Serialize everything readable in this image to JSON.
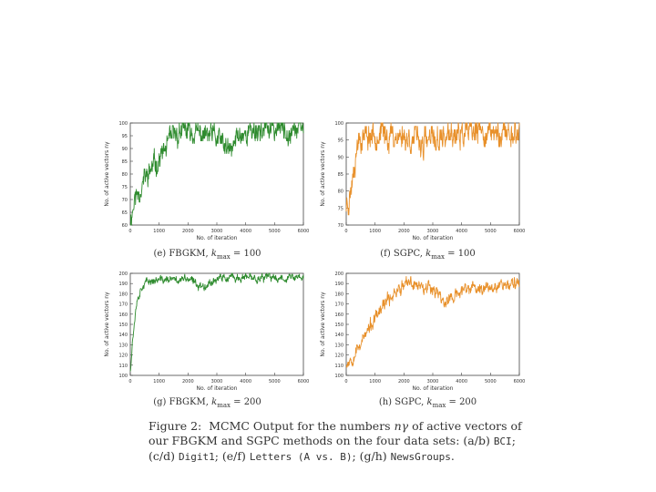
{
  "figure": {
    "label": "Figure 2:",
    "caption_start": "MCMC Output for the numbers ",
    "caption_symbol": "nγ",
    "caption_mid": " of active vectors of our FBGKM and SGPC methods on the four data sets: (a/b) ",
    "dataset_1": "BCI",
    "sep_1": "; (c/d) ",
    "dataset_2": "Digit1",
    "sep_2": "; (e/f) ",
    "dataset_3": "Letters (A vs. B)",
    "sep_3": "; (g/h) ",
    "dataset_4": "NewsGroups",
    "end": "."
  },
  "colors": {
    "fbgkm": "#2e8b2e",
    "sgpc": "#e8902a"
  },
  "chart_data": [
    {
      "id": "e",
      "type": "line",
      "caption": "(e) FBGKM, k_max = 100",
      "caption_text": "(e) FBGKM, ",
      "caption_kmax": "k",
      "caption_sub": "max",
      "caption_eq": " = 100",
      "ylabel": "No. of active vectors nγ",
      "xlabel": "No. of iteration",
      "xlim": [
        0,
        6000
      ],
      "ylim": [
        60,
        100
      ],
      "xticks": [
        "0",
        "1000",
        "2000",
        "3000",
        "4000",
        "5000",
        "6000"
      ],
      "yticks": [
        "60",
        "65",
        "70",
        "75",
        "80",
        "85",
        "90",
        "95",
        "100"
      ],
      "series_color": "fbgkm",
      "profile": [
        [
          0,
          62
        ],
        [
          150,
          70
        ],
        [
          400,
          76
        ],
        [
          800,
          83
        ],
        [
          1200,
          89
        ],
        [
          1500,
          95
        ],
        [
          1800,
          97
        ],
        [
          2200,
          96
        ],
        [
          2600,
          95
        ],
        [
          3000,
          94
        ],
        [
          3300,
          90
        ],
        [
          3500,
          88
        ],
        [
          3700,
          95
        ],
        [
          4200,
          97
        ],
        [
          5000,
          98
        ],
        [
          6000,
          98
        ]
      ],
      "noise": 3.5,
      "seed": 11,
      "cap": 100
    },
    {
      "id": "f",
      "type": "line",
      "caption": "(f) SGPC, k_max = 100",
      "caption_text": "(f) SGPC, ",
      "caption_kmax": "k",
      "caption_sub": "max",
      "caption_eq": " = 100",
      "ylabel": "No. of active vectors nγ",
      "xlabel": "No. of iteration",
      "xlim": [
        0,
        6000
      ],
      "ylim": [
        70,
        100
      ],
      "xticks": [
        "0",
        "1000",
        "2000",
        "3000",
        "4000",
        "5000",
        "6000"
      ],
      "yticks": [
        "70",
        "75",
        "80",
        "85",
        "90",
        "95",
        "100"
      ],
      "series_color": "sgpc",
      "profile": [
        [
          0,
          76
        ],
        [
          150,
          80
        ],
        [
          300,
          90
        ],
        [
          450,
          96
        ],
        [
          1000,
          97
        ],
        [
          2000,
          96
        ],
        [
          2700,
          94
        ],
        [
          3500,
          96
        ],
        [
          4500,
          97
        ],
        [
          6000,
          97
        ]
      ],
      "noise": 3.0,
      "seed": 23,
      "cap": 100
    },
    {
      "id": "g",
      "type": "line",
      "caption": "(g) FBGKM, k_max = 200",
      "caption_text": "(g) FBGKM, ",
      "caption_kmax": "k",
      "caption_sub": "max",
      "caption_eq": " = 200",
      "ylabel": "No. of active vectors nγ",
      "xlabel": "No. of iteration",
      "xlim": [
        0,
        6000
      ],
      "ylim": [
        100,
        200
      ],
      "xticks": [
        "0",
        "1000",
        "2000",
        "3000",
        "4000",
        "5000",
        "6000"
      ],
      "yticks": [
        "100",
        "110",
        "120",
        "130",
        "140",
        "150",
        "160",
        "170",
        "180",
        "190",
        "200"
      ],
      "series_color": "fbgkm",
      "profile": [
        [
          0,
          105
        ],
        [
          80,
          135
        ],
        [
          200,
          170
        ],
        [
          400,
          188
        ],
        [
          700,
          193
        ],
        [
          2000,
          194
        ],
        [
          2500,
          187
        ],
        [
          3000,
          195
        ],
        [
          6000,
          196
        ]
      ],
      "noise": 3.0,
      "seed": 37,
      "cap": 200
    },
    {
      "id": "h",
      "type": "line",
      "caption": "(h) SGPC, k_max = 200",
      "caption_text": "(h) SGPC, ",
      "caption_kmax": "k",
      "caption_sub": "max",
      "caption_eq": " = 200",
      "ylabel": "No. of active vectors nγ",
      "xlabel": "No. of iteration",
      "xlim": [
        0,
        6000
      ],
      "ylim": [
        100,
        200
      ],
      "xticks": [
        "0",
        "1000",
        "2000",
        "3000",
        "4000",
        "5000",
        "6000"
      ],
      "yticks": [
        "100",
        "110",
        "120",
        "130",
        "140",
        "150",
        "160",
        "170",
        "180",
        "190",
        "200"
      ],
      "series_color": "sgpc",
      "profile": [
        [
          0,
          112
        ],
        [
          200,
          118
        ],
        [
          500,
          132
        ],
        [
          900,
          150
        ],
        [
          1300,
          168
        ],
        [
          1700,
          183
        ],
        [
          2200,
          190
        ],
        [
          3000,
          187
        ],
        [
          3400,
          172
        ],
        [
          3800,
          178
        ],
        [
          4200,
          186
        ],
        [
          4600,
          184
        ],
        [
          5200,
          190
        ],
        [
          6000,
          189
        ]
      ],
      "noise": 5.0,
      "seed": 53,
      "cap": 200
    }
  ]
}
